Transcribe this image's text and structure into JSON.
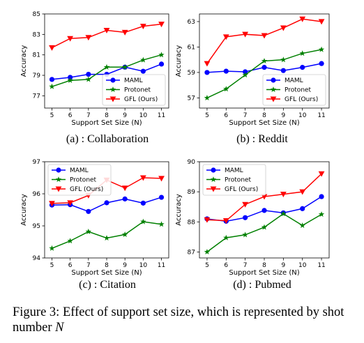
{
  "caption": {
    "text": "Figure 3: Effect of support set size, which is represented by shot number",
    "variable": "N"
  },
  "colors": {
    "MAML": "#0000ff",
    "Protonet": "#008000",
    "GFL (Ours)": "#ff0000"
  },
  "chart_data": [
    {
      "type": "line",
      "caption": "(a) : Collaboration",
      "xlabel": "Support Set Size (N)",
      "ylabel": "Accuracy",
      "x": [
        5,
        6,
        7,
        8,
        9,
        10,
        11
      ],
      "xlim": [
        4.6,
        11.4
      ],
      "ylim": [
        75.8,
        85
      ],
      "yticks": [
        77,
        79,
        81,
        83,
        85
      ],
      "legend_position": "lower-right",
      "series": [
        {
          "name": "MAML",
          "marker": "circle",
          "values": [
            78.6,
            78.8,
            79.1,
            79.1,
            79.8,
            79.4,
            80.1
          ]
        },
        {
          "name": "Protonet",
          "marker": "star",
          "values": [
            77.9,
            78.5,
            78.6,
            79.8,
            79.8,
            80.5,
            81.0
          ]
        },
        {
          "name": "GFL (Ours)",
          "marker": "triangle-down",
          "values": [
            81.7,
            82.6,
            82.7,
            83.4,
            83.2,
            83.8,
            84.0
          ]
        }
      ]
    },
    {
      "type": "line",
      "caption": "(b) : Reddit",
      "xlabel": "Support Set Size (N)",
      "ylabel": "Accuracy",
      "x": [
        5,
        6,
        7,
        8,
        9,
        10,
        11
      ],
      "xlim": [
        4.6,
        11.4
      ],
      "ylim": [
        56.2,
        63.6
      ],
      "yticks": [
        57,
        59,
        61,
        63
      ],
      "legend_position": "lower-right",
      "series": [
        {
          "name": "MAML",
          "marker": "circle",
          "values": [
            59.0,
            59.1,
            59.05,
            59.4,
            59.15,
            59.4,
            59.7
          ]
        },
        {
          "name": "Protonet",
          "marker": "star",
          "values": [
            57.0,
            57.7,
            58.8,
            59.9,
            60.0,
            60.5,
            60.8
          ]
        },
        {
          "name": "GFL (Ours)",
          "marker": "triangle-down",
          "values": [
            59.7,
            61.8,
            62.0,
            61.9,
            62.5,
            63.2,
            63.0
          ]
        }
      ]
    },
    {
      "type": "line",
      "caption": "(c) : Citation",
      "xlabel": "Support Set Size (N)",
      "ylabel": "Accuracy",
      "x": [
        5,
        6,
        7,
        8,
        9,
        10,
        11
      ],
      "xlim": [
        4.6,
        11.4
      ],
      "ylim": [
        94,
        97
      ],
      "yticks": [
        94,
        95,
        96,
        97
      ],
      "legend_position": "upper-left",
      "series": [
        {
          "name": "MAML",
          "marker": "circle",
          "values": [
            95.65,
            95.66,
            95.45,
            95.72,
            95.84,
            95.71,
            95.89
          ]
        },
        {
          "name": "Protonet",
          "marker": "star",
          "values": [
            94.3,
            94.53,
            94.82,
            94.62,
            94.73,
            95.13,
            95.05
          ]
        },
        {
          "name": "GFL (Ours)",
          "marker": "triangle-down",
          "values": [
            95.7,
            95.72,
            95.95,
            96.43,
            96.18,
            96.5,
            96.48
          ]
        }
      ]
    },
    {
      "type": "line",
      "caption": "(d) : Pubmed",
      "xlabel": "Support Set Size (N)",
      "ylabel": "Accuracy",
      "x": [
        5,
        6,
        7,
        8,
        9,
        10,
        11
      ],
      "xlim": [
        4.6,
        11.4
      ],
      "ylim": [
        86.8,
        90
      ],
      "yticks": [
        87,
        88,
        89,
        90
      ],
      "legend_position": "upper-left",
      "series": [
        {
          "name": "MAML",
          "marker": "circle",
          "values": [
            88.1,
            88.02,
            88.14,
            88.38,
            88.3,
            88.44,
            88.84
          ]
        },
        {
          "name": "Protonet",
          "marker": "star",
          "values": [
            87.0,
            87.47,
            87.57,
            87.82,
            88.27,
            87.88,
            88.25
          ]
        },
        {
          "name": "GFL (Ours)",
          "marker": "triangle-down",
          "values": [
            88.07,
            88.04,
            88.58,
            88.84,
            88.92,
            89.0,
            89.6
          ]
        }
      ]
    }
  ]
}
